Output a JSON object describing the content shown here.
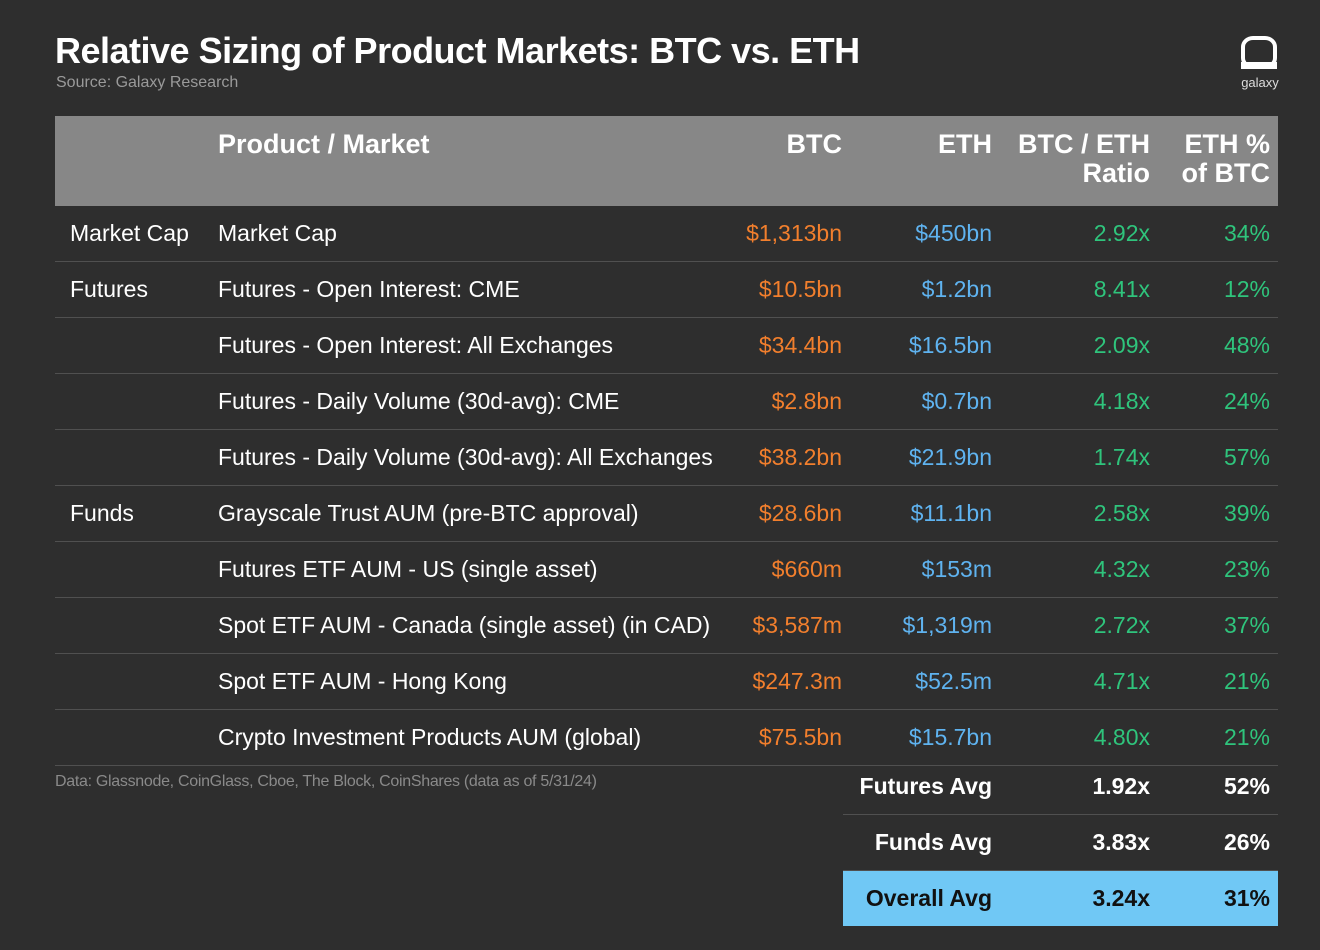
{
  "title": "Relative Sizing of Product Markets: BTC vs. ETH",
  "source": "Source: Galaxy Research",
  "logo": {
    "icon": "galaxy-logo-icon",
    "text": "galaxy"
  },
  "footnote": "Data: Glassnode, CoinGlass, Cboe, The Block, CoinShares (data as of 5/31/24)",
  "colors": {
    "background": "#2e2e2e",
    "header": "#878787",
    "btc": "#f27f2d",
    "eth": "#5fb3f0",
    "ratio": "#2fc47c",
    "highlight": "#70c8f5"
  },
  "chart_data": {
    "type": "table",
    "columns": [
      "",
      "Product / Market",
      "BTC",
      "ETH",
      "BTC / ETH\nRatio",
      "ETH %\nof BTC"
    ],
    "header": {
      "product": "Product / Market",
      "btc": "BTC",
      "eth": "ETH",
      "ratio_line1": "BTC / ETH",
      "ratio_line2": "Ratio",
      "pct_line1": "ETH %",
      "pct_line2": "of BTC"
    },
    "rows": [
      {
        "category": "Market Cap",
        "product": "Market Cap",
        "btc": "$1,313bn",
        "eth": "$450bn",
        "ratio": "2.92x",
        "pct": "34%"
      },
      {
        "category": "Futures",
        "product": "Futures - Open Interest: CME",
        "btc": "$10.5bn",
        "eth": "$1.2bn",
        "ratio": "8.41x",
        "pct": "12%"
      },
      {
        "category": "",
        "product": "Futures - Open Interest: All Exchanges",
        "btc": "$34.4bn",
        "eth": "$16.5bn",
        "ratio": "2.09x",
        "pct": "48%"
      },
      {
        "category": "",
        "product": "Futures - Daily Volume (30d-avg): CME",
        "btc": "$2.8bn",
        "eth": "$0.7bn",
        "ratio": "4.18x",
        "pct": "24%"
      },
      {
        "category": "",
        "product": "Futures - Daily Volume (30d-avg): All Exchanges",
        "btc": "$38.2bn",
        "eth": "$21.9bn",
        "ratio": "1.74x",
        "pct": "57%"
      },
      {
        "category": "Funds",
        "product": "Grayscale Trust AUM (pre-BTC approval)",
        "btc": "$28.6bn",
        "eth": "$11.1bn",
        "ratio": "2.58x",
        "pct": "39%"
      },
      {
        "category": "",
        "product": "Futures ETF AUM - US (single asset)",
        "btc": "$660m",
        "eth": "$153m",
        "ratio": "4.32x",
        "pct": "23%"
      },
      {
        "category": "",
        "product": "Spot ETF AUM - Canada (single asset) (in CAD)",
        "btc": "$3,587m",
        "eth": "$1,319m",
        "ratio": "2.72x",
        "pct": "37%"
      },
      {
        "category": "",
        "product": "Spot ETF AUM - Hong Kong",
        "btc": "$247.3m",
        "eth": "$52.5m",
        "ratio": "4.71x",
        "pct": "21%"
      },
      {
        "category": "",
        "product": "Crypto Investment Products AUM (global)",
        "btc": "$75.5bn",
        "eth": "$15.7bn",
        "ratio": "4.80x",
        "pct": "21%"
      }
    ],
    "averages": [
      {
        "label": "Futures Avg",
        "ratio": "1.92x",
        "pct": "52%",
        "highlight": false
      },
      {
        "label": "Funds Avg",
        "ratio": "3.83x",
        "pct": "26%",
        "highlight": false
      },
      {
        "label": "Overall Avg",
        "ratio": "3.24x",
        "pct": "31%",
        "highlight": true
      }
    ]
  }
}
